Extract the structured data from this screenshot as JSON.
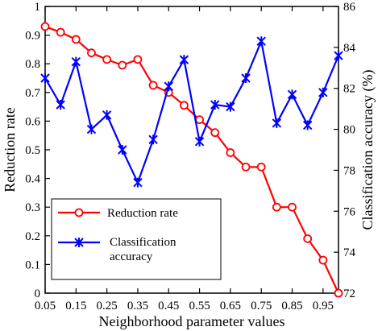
{
  "chart_data": {
    "type": "line",
    "xlabel": "Neighborhood parameter values",
    "ylabel_left": "Reduction rate",
    "ylabel_right": "Classification accuracy (%)",
    "x": [
      0.05,
      0.1,
      0.15,
      0.2,
      0.25,
      0.3,
      0.35,
      0.4,
      0.45,
      0.5,
      0.55,
      0.6,
      0.65,
      0.7,
      0.75,
      0.8,
      0.85,
      0.9,
      0.95,
      1.0
    ],
    "x_ticks": [
      "0.05",
      "0.15",
      "0.25",
      "0.35",
      "0.45",
      "0.55",
      "0.65",
      "0.75",
      "0.85",
      "0.95"
    ],
    "xlim": [
      0.05,
      1.0
    ],
    "ylim_left": [
      0,
      1
    ],
    "y_ticks_left": [
      "0",
      "0.1",
      "0.2",
      "0.3",
      "0.4",
      "0.5",
      "0.6",
      "0.7",
      "0.8",
      "0.9",
      "1"
    ],
    "ylim_right": [
      72,
      86
    ],
    "y_ticks_right": [
      "72",
      "74",
      "76",
      "78",
      "80",
      "82",
      "84",
      "86"
    ],
    "grid": false,
    "legend_position": "lower-left",
    "series": [
      {
        "name": "Reduction rate",
        "axis": "left",
        "color": "#ff0000",
        "marker": "circle",
        "values": [
          0.93,
          0.91,
          0.885,
          0.838,
          0.815,
          0.795,
          0.815,
          0.725,
          0.7,
          0.655,
          0.605,
          0.56,
          0.49,
          0.44,
          0.44,
          0.3,
          0.3,
          0.19,
          0.115,
          0.0
        ]
      },
      {
        "name": "Classification accuracy",
        "axis": "right",
        "color": "#0000ff",
        "marker": "x-star",
        "values": [
          82.5,
          81.2,
          83.3,
          80.0,
          80.7,
          79.0,
          77.4,
          79.5,
          82.1,
          83.4,
          79.4,
          81.2,
          81.1,
          82.5,
          84.3,
          80.3,
          81.7,
          80.2,
          81.8,
          83.6
        ]
      }
    ],
    "legend": {
      "items": [
        {
          "label": "Reduction rate",
          "color": "#ff0000",
          "marker": "circle"
        },
        {
          "label_lines": [
            "Classification",
            "accuracy"
          ],
          "color": "#0000ff",
          "marker": "x-star"
        }
      ]
    }
  }
}
